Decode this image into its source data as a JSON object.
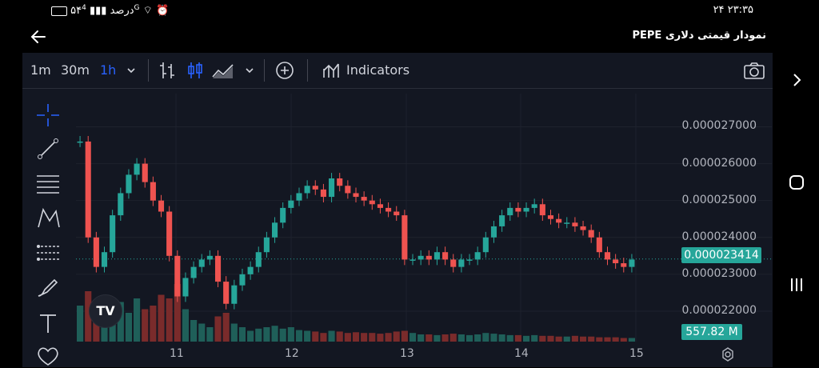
{
  "status_bar": {
    "left_text": "۵۴درصد",
    "network": "4G",
    "time": "۲۴ ۲۳:۳۵"
  },
  "header": {
    "title": "نمودار قیمتی دلاری PEPE"
  },
  "toolbar": {
    "intervals": [
      "1m",
      "30m",
      "1h"
    ],
    "active_interval": "1h",
    "indicators_label": "Indicators"
  },
  "sidebar": {
    "tools": [
      "crosshair-icon",
      "trendline-icon",
      "fib-icon",
      "pattern-icon",
      "measure-icon",
      "brush-icon",
      "text-icon",
      "favorite-icon"
    ]
  },
  "chart_data": {
    "type": "candlestick",
    "symbol": "PEPE",
    "x_ticks": [
      "11",
      "12",
      "13",
      "14",
      "15"
    ],
    "y_ticks": [
      "0.000027000",
      "0.000026000",
      "0.000025000",
      "0.000024000",
      "0.000023000",
      "0.000022000"
    ],
    "ylim": [
      2.15e-05,
      2.79e-05
    ],
    "last_price": "0.000023414",
    "volume_label": "557.82 M",
    "colors": {
      "up": "#26a69a",
      "down": "#ef5350"
    },
    "closes": [
      2.66e-05,
      2.4e-05,
      2.32e-05,
      2.36e-05,
      2.46e-05,
      2.52e-05,
      2.57e-05,
      2.6e-05,
      2.55e-05,
      2.5e-05,
      2.47e-05,
      2.35e-05,
      2.24e-05,
      2.29e-05,
      2.32e-05,
      2.34e-05,
      2.35e-05,
      2.28e-05,
      2.22e-05,
      2.27e-05,
      2.3e-05,
      2.32e-05,
      2.36e-05,
      2.4e-05,
      2.44e-05,
      2.48e-05,
      2.5e-05,
      2.52e-05,
      2.54e-05,
      2.53e-05,
      2.51e-05,
      2.56e-05,
      2.54e-05,
      2.52e-05,
      2.51e-05,
      2.5e-05,
      2.49e-05,
      2.48e-05,
      2.47e-05,
      2.46e-05,
      2.34e-05,
      2.34e-05,
      2.35e-05,
      2.34e-05,
      2.36e-05,
      2.34e-05,
      2.32e-05,
      2.34e-05,
      2.34e-05,
      2.36e-05,
      2.4e-05,
      2.43e-05,
      2.46e-05,
      2.48e-05,
      2.47e-05,
      2.48e-05,
      2.49e-05,
      2.46e-05,
      2.45e-05,
      2.44e-05,
      2.44e-05,
      2.43e-05,
      2.42e-05,
      2.4e-05,
      2.36e-05,
      2.34e-05,
      2.33e-05,
      2.32e-05,
      2.34e-05
    ],
    "opens": [
      2.66e-05,
      2.66e-05,
      2.4e-05,
      2.32e-05,
      2.36e-05,
      2.46e-05,
      2.52e-05,
      2.57e-05,
      2.6e-05,
      2.55e-05,
      2.5e-05,
      2.47e-05,
      2.35e-05,
      2.24e-05,
      2.29e-05,
      2.32e-05,
      2.34e-05,
      2.35e-05,
      2.28e-05,
      2.22e-05,
      2.27e-05,
      2.3e-05,
      2.32e-05,
      2.36e-05,
      2.4e-05,
      2.44e-05,
      2.48e-05,
      2.5e-05,
      2.52e-05,
      2.54e-05,
      2.53e-05,
      2.51e-05,
      2.56e-05,
      2.54e-05,
      2.52e-05,
      2.51e-05,
      2.5e-05,
      2.49e-05,
      2.48e-05,
      2.47e-05,
      2.46e-05,
      2.34e-05,
      2.34e-05,
      2.35e-05,
      2.34e-05,
      2.36e-05,
      2.34e-05,
      2.32e-05,
      2.34e-05,
      2.34e-05,
      2.36e-05,
      2.4e-05,
      2.43e-05,
      2.46e-05,
      2.48e-05,
      2.47e-05,
      2.48e-05,
      2.49e-05,
      2.46e-05,
      2.45e-05,
      2.44e-05,
      2.44e-05,
      2.43e-05,
      2.42e-05,
      2.4e-05,
      2.36e-05,
      2.34e-05,
      2.33e-05,
      2.32e-05
    ],
    "volumes": [
      50,
      70,
      40,
      35,
      45,
      55,
      40,
      60,
      45,
      50,
      65,
      60,
      80,
      45,
      30,
      25,
      20,
      35,
      40,
      25,
      20,
      15,
      18,
      20,
      22,
      18,
      20,
      16,
      15,
      14,
      12,
      15,
      14,
      12,
      13,
      12,
      12,
      11,
      12,
      14,
      15,
      12,
      10,
      10,
      9,
      10,
      11,
      10,
      9,
      10,
      12,
      11,
      10,
      9,
      9,
      8,
      9,
      8,
      8,
      7,
      7,
      8,
      7,
      7,
      6,
      6,
      6,
      5,
      5
    ]
  },
  "price_label": "0.000023414",
  "volume_label": "557.82 M"
}
